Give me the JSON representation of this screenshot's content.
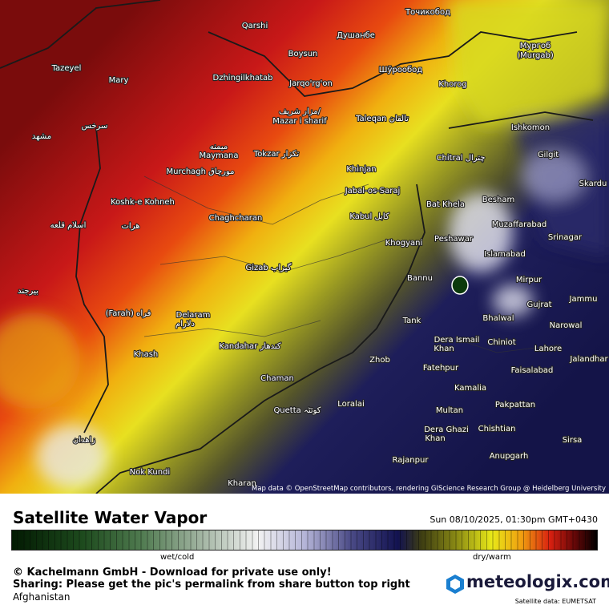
{
  "map": {
    "attribution": "Map data © OpenStreetMap contributors, rendering GIScience Research Group @ Heidelberg University",
    "labels": [
      "Qarshi",
      "Душанбе",
      "Точикобод",
      "Boysun",
      "Мургоб",
      "(Murgab)",
      "Tazeyel",
      "Mary",
      "Dzhingilkhatab",
      "Jarqo'rg'on",
      "Шўрообод",
      "Khorog",
      "Ishkomon",
      "مزار شریف/",
      "Mazar i sharif",
      "Taleqan تالقان",
      "Gilgit",
      "Chitral چترال",
      "Skardu",
      "مشهد",
      "سرخس",
      "میمنه",
      "Maymana",
      "Tokzar تکزار",
      "Murchagh مورچاق",
      "Khinjan",
      "Jabal-os-Saraj",
      "Bat Khela",
      "Besham",
      "Koshk-e Kohneh",
      "Chaghcharan",
      "Kabul کابل",
      "Muzaffarabad",
      "Srinagar",
      "اسلام قلعه",
      "هرات",
      "Khogyani",
      "Peshawar",
      "Islamabad",
      "Gizab گیزاب",
      "Bannu",
      "Mirpur",
      "Jammu",
      "بیرجند",
      "(Farah) فراه",
      "Delaram",
      "دلارام",
      "Gujrat",
      "Bhalwal",
      "Tank",
      "Narowal",
      "Dera Ismail",
      "Khan",
      "Chiniot",
      "Lahore",
      "Kandahar کندهار",
      "Khash",
      "Jalandhar",
      "Zhob",
      "Fatehpur",
      "Faisalabad",
      "Chaman",
      "Kamalia",
      "Pakpattan",
      "Loralai",
      "Quetta کوئٹہ",
      "Multan",
      "Chishtian",
      "Dera Ghazi",
      "Khan",
      "Sirsa",
      "زاهدان",
      "Anupgarh",
      "Rajanpur",
      "Nok Kundi",
      "Kharan"
    ]
  },
  "footer": {
    "title": "Satellite Water Vapor",
    "datetime": "Sun 08/10/2025, 01:30pm GMT+0430",
    "scale_left": "wet/cold",
    "scale_right": "dry/warm",
    "copyright": "© Kachelmann GmbH - Download for private use only!",
    "sharing": "Sharing: Please get the pic's permalink from share button top right",
    "region": "Afghanistan",
    "logo": "meteologix.com",
    "source": "Satellite data: EUMETSAT"
  }
}
